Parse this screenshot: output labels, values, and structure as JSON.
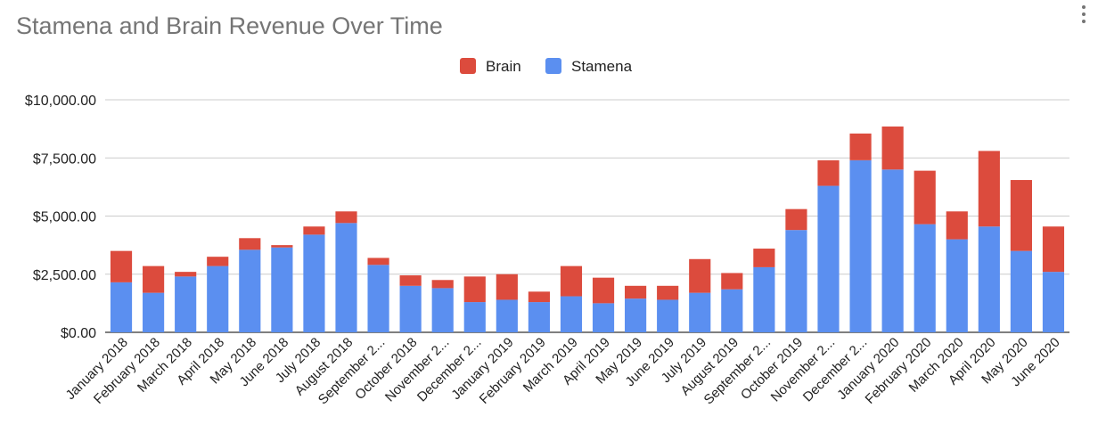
{
  "chart_data": {
    "type": "bar",
    "stacked": true,
    "title": "Stamena and Brain Revenue Over Time",
    "xlabel": "",
    "ylabel": "",
    "ylim": [
      0,
      10000
    ],
    "yticks": [
      "$0.00",
      "$2,500.00",
      "$5,000.00",
      "$7,500.00",
      "$10,000.00"
    ],
    "ytick_values": [
      0,
      2500,
      5000,
      7500,
      10000
    ],
    "legend_position": "top",
    "grid": true,
    "categories": [
      "January 2018",
      "February 2018",
      "March 2018",
      "April 2018",
      "May 2018",
      "June 2018",
      "July 2018",
      "August 2018",
      "September 2...",
      "October 2018",
      "November 2...",
      "December 2...",
      "January 2019",
      "February 2019",
      "March 2019",
      "April 2019",
      "May 2019",
      "June 2019",
      "July 2019",
      "August 2019",
      "September 2...",
      "October 2019",
      "November 2...",
      "December 2...",
      "January 2020",
      "February 2020",
      "March 2020",
      "April 2020",
      "May 2020",
      "June 2020"
    ],
    "series": [
      {
        "name": "Stamena",
        "color": "#5b8ff0",
        "values": [
          2150,
          1700,
          2400,
          2850,
          3550,
          3650,
          4200,
          4700,
          2900,
          2000,
          1900,
          1300,
          1400,
          1300,
          1550,
          1250,
          1450,
          1400,
          1700,
          1850,
          2800,
          4400,
          6300,
          7400,
          7000,
          4650,
          4000,
          4550,
          3500,
          2600
        ]
      },
      {
        "name": "Brain",
        "color": "#dc4b3d",
        "values": [
          1350,
          1150,
          200,
          400,
          500,
          100,
          350,
          500,
          300,
          450,
          350,
          1100,
          1100,
          450,
          1300,
          1100,
          550,
          600,
          1450,
          700,
          800,
          900,
          1100,
          1150,
          1850,
          2300,
          1200,
          3250,
          3050,
          1950
        ]
      }
    ],
    "legend": [
      "Brain",
      "Stamena"
    ]
  },
  "icons": {
    "menu": "more-vert-icon"
  }
}
